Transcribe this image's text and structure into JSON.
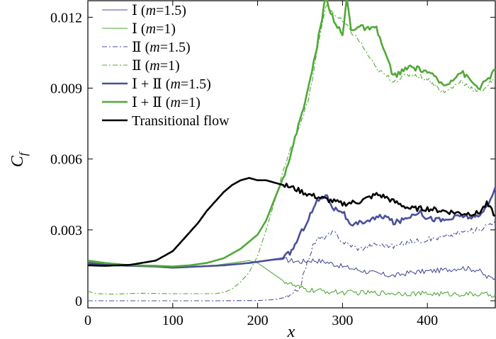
{
  "chart_data": {
    "type": "line",
    "title": "",
    "xlabel": "x",
    "ylabel": "C",
    "ylabel_sub": "f",
    "xlim": [
      0,
      480
    ],
    "ylim": [
      -0.0003,
      0.0127
    ],
    "xticks": [
      0,
      100,
      200,
      300,
      400
    ],
    "xtick_labels": [
      "0",
      "100",
      "200",
      "300",
      "400"
    ],
    "yticks": [
      0,
      0.003,
      0.006,
      0.009,
      0.012
    ],
    "ytick_labels": [
      "0",
      "0.003",
      "0.006",
      "0.009",
      "0.012"
    ],
    "grid": false,
    "legend_position": "top-left",
    "series": [
      {
        "name": "Ⅰ (m=1.5)",
        "color": "#4a4f9c",
        "style": "thin-solid",
        "x": [
          0,
          20,
          50,
          80,
          100,
          130,
          160,
          190,
          210,
          230,
          250,
          265,
          280,
          300,
          320,
          340,
          360,
          380,
          400,
          420,
          440,
          460,
          470,
          480
        ],
        "y": [
          0.00155,
          0.0015,
          0.00148,
          0.00145,
          0.00142,
          0.00145,
          0.00152,
          0.0016,
          0.0017,
          0.00175,
          0.00165,
          0.00172,
          0.00165,
          0.00145,
          0.0013,
          0.00115,
          0.00105,
          0.0012,
          0.00125,
          0.0013,
          0.0014,
          0.0013,
          0.001,
          0.00095
        ]
      },
      {
        "name": "Ⅰ (m=1)",
        "color": "#52a838",
        "style": "thin-solid",
        "x": [
          0,
          20,
          50,
          80,
          100,
          120,
          150,
          170,
          190,
          200,
          210,
          220,
          230,
          245,
          260,
          280,
          300,
          350,
          400,
          450,
          480
        ],
        "y": [
          0.00165,
          0.00155,
          0.0015,
          0.00145,
          0.0014,
          0.00142,
          0.0015,
          0.0016,
          0.0017,
          0.0016,
          0.00135,
          0.0011,
          0.00085,
          0.0006,
          0.00045,
          0.0004,
          0.00035,
          0.00033,
          0.0003,
          0.00028,
          0.00025
        ]
      },
      {
        "name": "Ⅱ (m=1.5)",
        "color": "#4a4f9c",
        "style": "thin-dashdot",
        "x": [
          0,
          50,
          100,
          150,
          200,
          220,
          240,
          250,
          255,
          260,
          265,
          270,
          280,
          290,
          300,
          320,
          340,
          360,
          380,
          400,
          420,
          440,
          460,
          480
        ],
        "y": [
          0.0,
          0.0,
          0.0,
          0.0,
          1e-05,
          5e-05,
          0.0002,
          0.0006,
          0.0012,
          0.0018,
          0.0023,
          0.0026,
          0.0027,
          0.0029,
          0.0025,
          0.0022,
          0.0024,
          0.0023,
          0.0025,
          0.0026,
          0.0027,
          0.0029,
          0.003,
          0.0034
        ]
      },
      {
        "name": "Ⅱ (m=1)",
        "color": "#52a838",
        "style": "thin-dashdot",
        "x": [
          0,
          10,
          30,
          60,
          100,
          130,
          150,
          160,
          170,
          180,
          190,
          200,
          210,
          220,
          230,
          240,
          260,
          280,
          300,
          320,
          340,
          360,
          380,
          400,
          420,
          440,
          460,
          480
        ],
        "y": [
          0.0004,
          0.0003,
          0.00028,
          0.00032,
          0.0003,
          0.0003,
          0.0003,
          0.00035,
          0.0005,
          0.0008,
          0.0012,
          0.0019,
          0.003,
          0.0042,
          0.0055,
          0.0065,
          0.0085,
          0.0125,
          0.0118,
          0.011,
          0.0098,
          0.0093,
          0.0096,
          0.0094,
          0.0088,
          0.0093,
          0.0088,
          0.0094
        ]
      },
      {
        "name": "Ⅰ + Ⅱ (m=1.5)",
        "color": "#4a4f9c",
        "style": "thick-solid",
        "x": [
          0,
          20,
          50,
          80,
          100,
          130,
          160,
          190,
          210,
          230,
          240,
          250,
          260,
          270,
          280,
          290,
          300,
          310,
          320,
          340,
          350,
          360,
          370,
          380,
          390,
          400,
          420,
          440,
          460,
          470,
          480
        ],
        "y": [
          0.0016,
          0.00152,
          0.00148,
          0.00145,
          0.0014,
          0.00145,
          0.0015,
          0.0016,
          0.0017,
          0.0018,
          0.0021,
          0.0028,
          0.0035,
          0.0042,
          0.0045,
          0.0039,
          0.0038,
          0.0031,
          0.0033,
          0.0035,
          0.0036,
          0.0033,
          0.0034,
          0.0036,
          0.0038,
          0.0035,
          0.0034,
          0.0036,
          0.0035,
          0.004,
          0.0048
        ]
      },
      {
        "name": "Ⅰ + Ⅱ (m=1)",
        "color": "#52a838",
        "style": "thick-solid",
        "x": [
          0,
          20,
          50,
          80,
          100,
          120,
          140,
          160,
          180,
          200,
          210,
          220,
          230,
          240,
          250,
          260,
          270,
          280,
          290,
          300,
          305,
          310,
          320,
          330,
          340,
          350,
          360,
          380,
          400,
          420,
          440,
          460,
          470,
          480
        ],
        "y": [
          0.0017,
          0.0016,
          0.0015,
          0.00148,
          0.00145,
          0.0015,
          0.0016,
          0.0018,
          0.0022,
          0.0028,
          0.0034,
          0.0043,
          0.0052,
          0.0063,
          0.0077,
          0.009,
          0.0108,
          0.0128,
          0.0119,
          0.0112,
          0.0128,
          0.0115,
          0.0116,
          0.0115,
          0.0115,
          0.0105,
          0.0095,
          0.0099,
          0.0097,
          0.0091,
          0.0097,
          0.009,
          0.0093,
          0.0098
        ]
      },
      {
        "name": "Transitional flow",
        "color": "#000000",
        "style": "thick-solid",
        "x": [
          0,
          20,
          50,
          80,
          100,
          110,
          120,
          130,
          140,
          150,
          160,
          170,
          180,
          190,
          200,
          210,
          220,
          240,
          260,
          280,
          300,
          320,
          340,
          350,
          360,
          380,
          400,
          420,
          440,
          460,
          470,
          480
        ],
        "y": [
          0.0015,
          0.00148,
          0.00152,
          0.0017,
          0.0021,
          0.0025,
          0.0029,
          0.0033,
          0.0038,
          0.0042,
          0.0046,
          0.0049,
          0.0051,
          0.0052,
          0.0051,
          0.0051,
          0.005,
          0.0048,
          0.0045,
          0.0043,
          0.0041,
          0.0042,
          0.0045,
          0.0044,
          0.0042,
          0.0039,
          0.0039,
          0.0038,
          0.0037,
          0.0037,
          0.0041,
          0.0036
        ]
      }
    ]
  }
}
